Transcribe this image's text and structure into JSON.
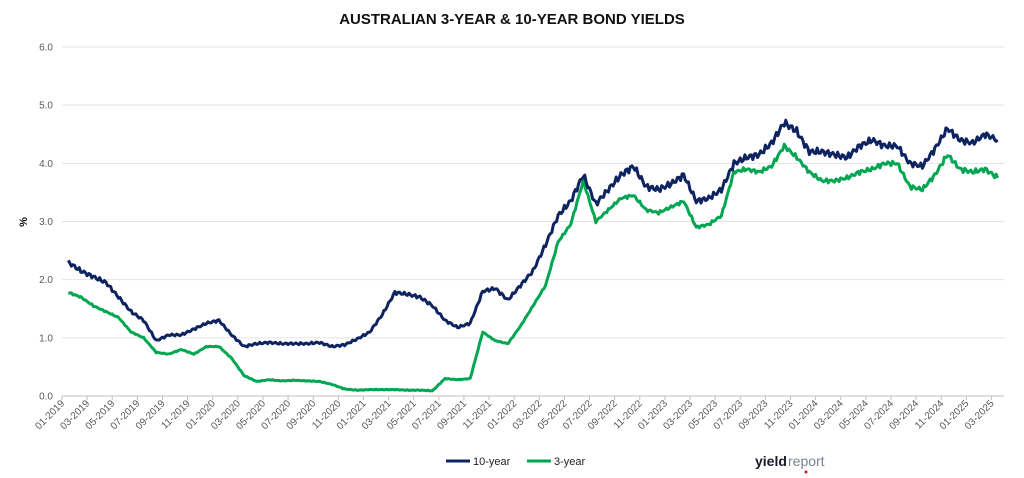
{
  "chart_data": {
    "type": "line",
    "title": "AUSTRALIAN 3-YEAR & 10-YEAR BOND YIELDS",
    "ylabel": "%",
    "xlabel": "",
    "ylim": [
      0,
      6
    ],
    "yticks": [
      "0.0",
      "1.0",
      "2.0",
      "3.0",
      "4.0",
      "5.0",
      "6.0"
    ],
    "grid": true,
    "legend_position": "bottom-center",
    "x_tick_labels": [
      "01-2019",
      "03-2019",
      "05-2019",
      "07-2019",
      "09-2019",
      "11-2019",
      "01-2020",
      "03-2020",
      "05-2020",
      "07-2020",
      "09-2020",
      "11-2020",
      "01-2021",
      "03-2021",
      "05-2021",
      "07-2021",
      "09-2021",
      "11-2021",
      "01-2022",
      "03-2022",
      "05-2022",
      "07-2022",
      "09-2022",
      "11-2022",
      "01-2023",
      "03-2023",
      "05-2023",
      "07-2023",
      "09-2023",
      "11-2023",
      "01-2024",
      "03-2024",
      "05-2024",
      "07-2024",
      "09-2024",
      "11-2024",
      "01-2025",
      "03-2025"
    ],
    "x": [
      "01-2019",
      "02-2019",
      "03-2019",
      "04-2019",
      "05-2019",
      "06-2019",
      "07-2019",
      "08-2019",
      "09-2019",
      "10-2019",
      "11-2019",
      "12-2019",
      "01-2020",
      "02-2020",
      "03-2020",
      "04-2020",
      "05-2020",
      "06-2020",
      "07-2020",
      "08-2020",
      "09-2020",
      "10-2020",
      "11-2020",
      "12-2020",
      "01-2021",
      "02-2021",
      "03-2021",
      "04-2021",
      "05-2021",
      "06-2021",
      "07-2021",
      "08-2021",
      "09-2021",
      "10-2021",
      "11-2021",
      "12-2021",
      "01-2022",
      "02-2022",
      "03-2022",
      "04-2022",
      "05-2022",
      "06-2022",
      "07-2022",
      "08-2022",
      "09-2022",
      "10-2022",
      "11-2022",
      "12-2022",
      "01-2023",
      "02-2023",
      "03-2023",
      "04-2023",
      "05-2023",
      "06-2023",
      "07-2023",
      "08-2023",
      "09-2023",
      "10-2023",
      "11-2023",
      "12-2023",
      "01-2024",
      "02-2024",
      "03-2024",
      "04-2024",
      "05-2024",
      "06-2024",
      "07-2024",
      "08-2024",
      "09-2024",
      "10-2024",
      "11-2024",
      "12-2024",
      "01-2025",
      "02-2025",
      "03-2025"
    ],
    "series": [
      {
        "name": "10-year",
        "color": "#0e2461",
        "values": [
          2.3,
          2.15,
          2.05,
          1.95,
          1.7,
          1.45,
          1.3,
          0.95,
          1.05,
          1.05,
          1.15,
          1.25,
          1.3,
          1.05,
          0.85,
          0.9,
          0.92,
          0.9,
          0.9,
          0.9,
          0.92,
          0.85,
          0.88,
          0.98,
          1.1,
          1.4,
          1.78,
          1.75,
          1.7,
          1.55,
          1.3,
          1.18,
          1.25,
          1.8,
          1.85,
          1.65,
          1.9,
          2.15,
          2.6,
          3.1,
          3.35,
          3.8,
          3.3,
          3.55,
          3.8,
          3.95,
          3.6,
          3.55,
          3.65,
          3.8,
          3.35,
          3.4,
          3.55,
          4.0,
          4.1,
          4.15,
          4.35,
          4.7,
          4.55,
          4.2,
          4.2,
          4.15,
          4.1,
          4.3,
          4.4,
          4.3,
          4.3,
          4.0,
          3.95,
          4.25,
          4.6,
          4.4,
          4.35,
          4.5,
          4.4
        ]
      },
      {
        "name": "3-year",
        "color": "#00a651",
        "values": [
          1.78,
          1.7,
          1.55,
          1.45,
          1.35,
          1.1,
          1.0,
          0.75,
          0.72,
          0.8,
          0.72,
          0.85,
          0.85,
          0.65,
          0.35,
          0.25,
          0.28,
          0.26,
          0.27,
          0.26,
          0.25,
          0.2,
          0.12,
          0.1,
          0.11,
          0.11,
          0.11,
          0.1,
          0.1,
          0.09,
          0.3,
          0.28,
          0.3,
          1.1,
          0.95,
          0.9,
          1.2,
          1.55,
          1.9,
          2.65,
          2.95,
          3.7,
          3.0,
          3.2,
          3.4,
          3.45,
          3.2,
          3.15,
          3.25,
          3.35,
          2.9,
          2.95,
          3.1,
          3.85,
          3.9,
          3.85,
          3.95,
          4.3,
          4.1,
          3.85,
          3.7,
          3.7,
          3.75,
          3.85,
          3.9,
          4.0,
          4.0,
          3.6,
          3.55,
          3.8,
          4.15,
          3.9,
          3.85,
          3.9,
          3.75
        ]
      }
    ],
    "brand": {
      "part1": "yield",
      "part2": "report"
    }
  }
}
